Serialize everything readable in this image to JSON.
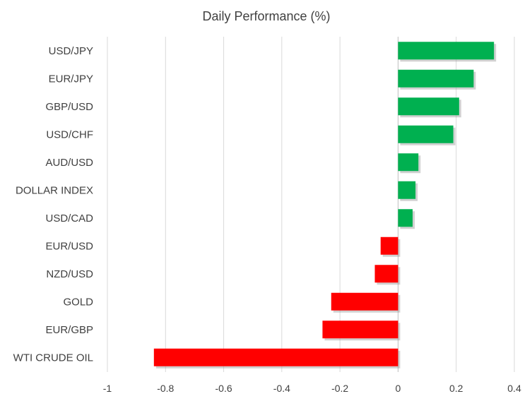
{
  "chart_data": {
    "type": "bar",
    "orientation": "horizontal",
    "title": "Daily Performance (%)",
    "categories": [
      "USD/JPY",
      "EUR/JPY",
      "GBP/USD",
      "USD/CHF",
      "AUD/USD",
      "DOLLAR INDEX",
      "USD/CAD",
      "EUR/USD",
      "NZD/USD",
      "GOLD",
      "EUR/GBP",
      "WTI CRUDE OIL"
    ],
    "values": [
      0.33,
      0.26,
      0.21,
      0.19,
      0.07,
      0.06,
      0.05,
      -0.06,
      -0.08,
      -0.23,
      -0.26,
      -0.84
    ],
    "xlim": [
      -1,
      0.4
    ],
    "xticks": [
      "-1",
      "-0.8",
      "-0.6",
      "-0.4",
      "-0.2",
      "0",
      "0.2",
      "0.4"
    ],
    "grid": "vertical",
    "colors": {
      "positive": "#00b050",
      "negative": "#ff0000"
    }
  }
}
